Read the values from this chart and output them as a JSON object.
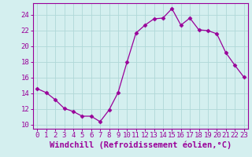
{
  "x": [
    0,
    1,
    2,
    3,
    4,
    5,
    6,
    7,
    8,
    9,
    10,
    11,
    12,
    13,
    14,
    15,
    16,
    17,
    18,
    19,
    20,
    21,
    22,
    23
  ],
  "y": [
    14.6,
    14.1,
    13.2,
    12.1,
    11.7,
    11.1,
    11.1,
    10.4,
    11.9,
    14.1,
    18.0,
    21.7,
    22.7,
    23.5,
    23.6,
    24.8,
    22.7,
    23.6,
    22.1,
    22.0,
    21.6,
    19.2,
    17.6,
    16.1
  ],
  "line_color": "#990099",
  "marker": "D",
  "marker_size": 2.5,
  "bg_color": "#d4efef",
  "grid_color": "#b0d8d8",
  "xlabel": "Windchill (Refroidissement éolien,°C)",
  "xlim": [
    -0.5,
    23.5
  ],
  "ylim": [
    9.5,
    25.5
  ],
  "yticks": [
    10,
    12,
    14,
    16,
    18,
    20,
    22,
    24
  ],
  "xticks": [
    0,
    1,
    2,
    3,
    4,
    5,
    6,
    7,
    8,
    9,
    10,
    11,
    12,
    13,
    14,
    15,
    16,
    17,
    18,
    19,
    20,
    21,
    22,
    23
  ],
  "label_color": "#990099",
  "tick_color": "#990099",
  "spine_color": "#990099",
  "font_size": 6.5,
  "xlabel_fontsize": 7.5
}
